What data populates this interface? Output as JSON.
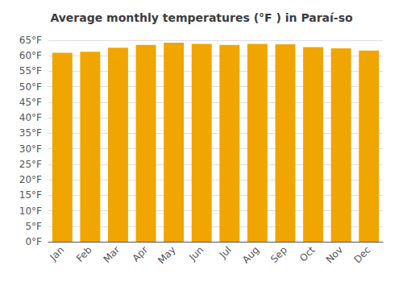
{
  "chart_data": {
    "type": "bar",
    "title": "Average monthly temperatures (°F ) in Paraí-so",
    "categories": [
      "Jan",
      "Feb",
      "Mar",
      "Apr",
      "May",
      "Jun",
      "Jul",
      "Aug",
      "Sep",
      "Oct",
      "Nov",
      "Dec"
    ],
    "values": [
      61.0,
      61.3,
      62.6,
      63.5,
      64.2,
      63.8,
      63.5,
      63.8,
      63.7,
      62.8,
      62.4,
      61.7
    ],
    "color": "#F0A500",
    "ylim": [
      0,
      65
    ],
    "yticks": [
      {
        "value": 0,
        "label": "0°F"
      },
      {
        "value": 5,
        "label": "5°F"
      },
      {
        "value": 10,
        "label": "10°F"
      },
      {
        "value": 15,
        "label": "15°F"
      },
      {
        "value": 20,
        "label": "20°F"
      },
      {
        "value": 25,
        "label": "25°F"
      },
      {
        "value": 30,
        "label": "30°F"
      },
      {
        "value": 35,
        "label": "35°F"
      },
      {
        "value": 40,
        "label": "40°F"
      },
      {
        "value": 45,
        "label": "45°F"
      },
      {
        "value": 50,
        "label": "50°F"
      },
      {
        "value": 55,
        "label": "55°F"
      },
      {
        "value": 60,
        "label": "60°F"
      },
      {
        "value": 65,
        "label": "65°F"
      }
    ],
    "grid": true
  }
}
